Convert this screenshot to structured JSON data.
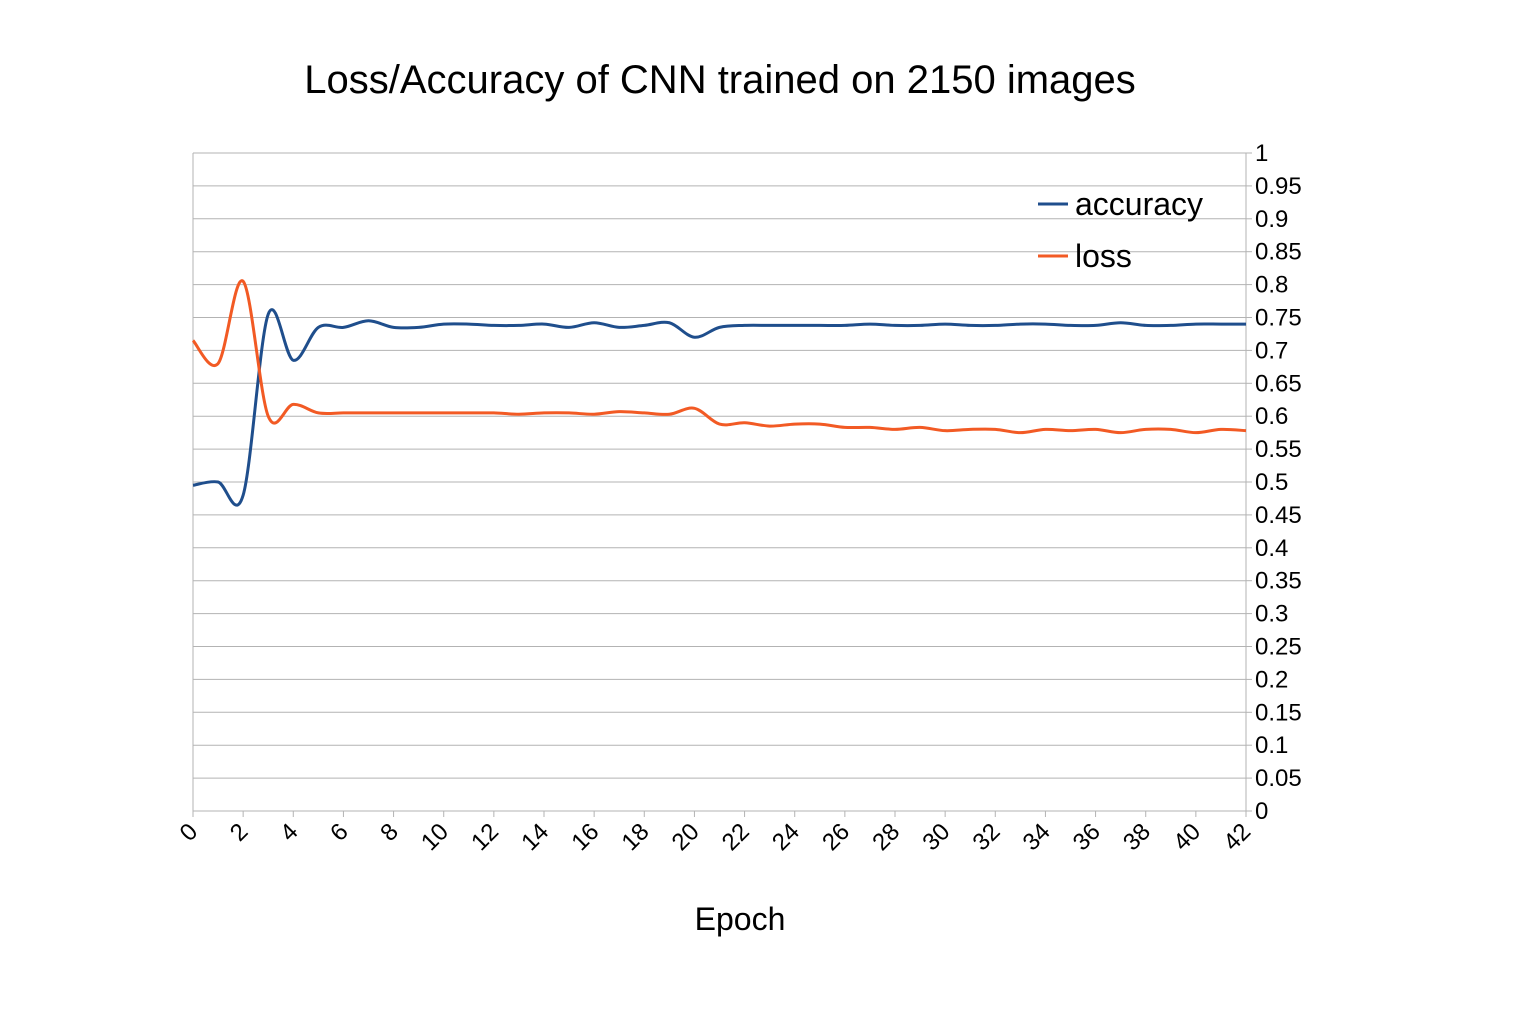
{
  "chart_data": {
    "type": "line",
    "title": "Loss/Accuracy of CNN trained on 2150 images",
    "xlabel": "Epoch",
    "ylabel": "",
    "xlim": [
      0,
      42
    ],
    "ylim": [
      0,
      1
    ],
    "x_ticks": [
      "0",
      "2",
      "4",
      "6",
      "8",
      "10",
      "12",
      "14",
      "16",
      "18",
      "20",
      "22",
      "24",
      "26",
      "28",
      "30",
      "32",
      "34",
      "36",
      "38",
      "40",
      "42"
    ],
    "y_ticks": [
      "0",
      "0.05",
      "0.1",
      "0.15",
      "0.2",
      "0.25",
      "0.3",
      "0.35",
      "0.4",
      "0.45",
      "0.5",
      "0.55",
      "0.6",
      "0.65",
      "0.7",
      "0.75",
      "0.8",
      "0.85",
      "0.9",
      "0.95",
      "1"
    ],
    "y_axis_side": "right",
    "grid": true,
    "legend_position": "top-right",
    "x": [
      0,
      1,
      2,
      3,
      4,
      5,
      6,
      7,
      8,
      9,
      10,
      11,
      12,
      13,
      14,
      15,
      16,
      17,
      18,
      19,
      20,
      21,
      22,
      23,
      24,
      25,
      26,
      27,
      28,
      29,
      30,
      31,
      32,
      33,
      34,
      35,
      36,
      37,
      38,
      39,
      40,
      41,
      42
    ],
    "series": [
      {
        "name": "accuracy",
        "color": "#1f4e8c",
        "values": [
          0.495,
          0.5,
          0.48,
          0.755,
          0.685,
          0.735,
          0.735,
          0.745,
          0.735,
          0.735,
          0.74,
          0.74,
          0.738,
          0.738,
          0.74,
          0.735,
          0.742,
          0.735,
          0.738,
          0.742,
          0.72,
          0.735,
          0.738,
          0.738,
          0.738,
          0.738,
          0.738,
          0.74,
          0.738,
          0.738,
          0.74,
          0.738,
          0.738,
          0.74,
          0.74,
          0.738,
          0.738,
          0.742,
          0.738,
          0.738,
          0.74,
          0.74,
          0.74
        ]
      },
      {
        "name": "loss",
        "color": "#f25a24",
        "values": [
          0.715,
          0.68,
          0.805,
          0.6,
          0.618,
          0.605,
          0.605,
          0.605,
          0.605,
          0.605,
          0.605,
          0.605,
          0.605,
          0.603,
          0.605,
          0.605,
          0.603,
          0.607,
          0.605,
          0.603,
          0.612,
          0.588,
          0.59,
          0.585,
          0.588,
          0.588,
          0.583,
          0.583,
          0.58,
          0.583,
          0.578,
          0.58,
          0.58,
          0.575,
          0.58,
          0.578,
          0.58,
          0.575,
          0.58,
          0.58,
          0.575,
          0.58,
          0.578
        ]
      }
    ]
  }
}
